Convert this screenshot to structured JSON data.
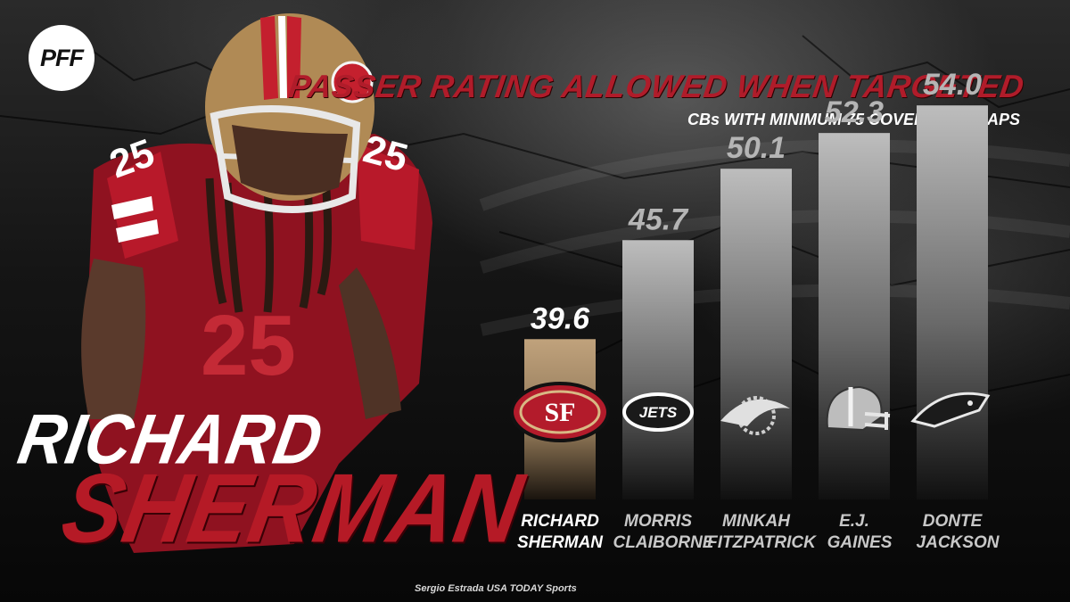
{
  "branding": {
    "logo_text": "PFF"
  },
  "player": {
    "first_name": "RICHARD",
    "last_name": "SHERMAN",
    "jersey_number": "25"
  },
  "photo_credit": "Sergio Estrada USA TODAY Sports",
  "colors": {
    "highlight_bar": "#c0a27c",
    "bar_top": "#bdbdbd",
    "bar_bottom": "#101010",
    "title_red": "#b01c2a",
    "player_red": "#b51a26"
  },
  "chart_data": {
    "type": "bar",
    "title": "PASSER RATING ALLOWED  WHEN TARGETED",
    "subtitle": "CBs WITH MINIMUM 75 COVERAGE SNAPS",
    "categories": [
      "RICHARD\nSHERMAN",
      "MORRIS\nCLAIBORNE",
      "MINKAH\nFITZPATRICK",
      "E.J.\nGAINES",
      "DONTE\nJACKSON"
    ],
    "values": [
      39.6,
      45.7,
      50.1,
      52.3,
      54.0
    ],
    "value_labels": [
      "39.6",
      "45.7",
      "50.1",
      "52.3",
      "54.0"
    ],
    "team_icons": [
      "49ers-logo-icon",
      "jets-logo-icon",
      "dolphins-logo-icon",
      "browns-helmet-icon",
      "panthers-logo-icon"
    ],
    "highlight_index": 0,
    "grid": false,
    "legend": "none"
  }
}
